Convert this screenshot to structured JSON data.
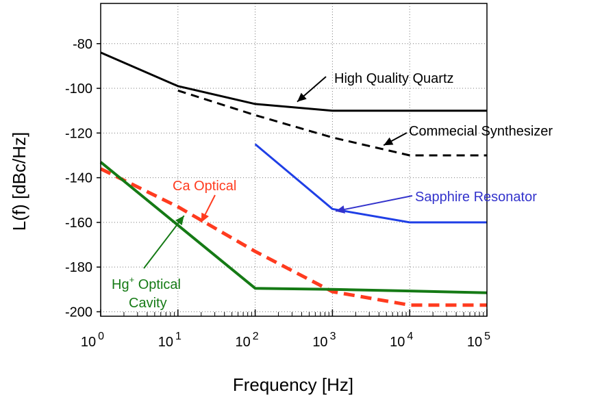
{
  "chart_data": {
    "type": "line",
    "title": "",
    "xlabel": "Frequency [Hz]",
    "ylabel": "L(f) [dBc/Hz]",
    "x_scale": "log",
    "xlim": [
      1,
      100000
    ],
    "ylim": [
      -202,
      -62
    ],
    "grid": true,
    "legend": "none",
    "x_ticks": [
      {
        "value": 1,
        "base": "10",
        "exp": "0"
      },
      {
        "value": 10,
        "base": "10",
        "exp": "1"
      },
      {
        "value": 100,
        "base": "10",
        "exp": "2"
      },
      {
        "value": 1000,
        "base": "10",
        "exp": "3"
      },
      {
        "value": 10000,
        "base": "10",
        "exp": "4"
      },
      {
        "value": 100000,
        "base": "10",
        "exp": "5"
      }
    ],
    "y_ticks": [
      {
        "value": -80,
        "label": "-80"
      },
      {
        "value": -100,
        "label": "-100"
      },
      {
        "value": -120,
        "label": "-120"
      },
      {
        "value": -140,
        "label": "-140"
      },
      {
        "value": -160,
        "label": "-160"
      },
      {
        "value": -180,
        "label": "-180"
      },
      {
        "value": -200,
        "label": "-200"
      }
    ],
    "series": [
      {
        "color": "#000000",
        "dash": "solid",
        "width": 3,
        "points": [
          [
            1,
            -84
          ],
          [
            10,
            -99
          ],
          [
            100,
            -107
          ],
          [
            1000,
            -110
          ],
          [
            100000,
            -110
          ]
        ]
      },
      {
        "color": "#000000",
        "dash": "dashed",
        "width": 3,
        "points": [
          [
            10,
            -101
          ],
          [
            100,
            -112
          ],
          [
            1000,
            -122
          ],
          [
            10000,
            -130
          ],
          [
            100000,
            -130
          ]
        ]
      },
      {
        "color": "#1f3fe6",
        "dash": "solid",
        "width": 3,
        "points": [
          [
            100,
            -125
          ],
          [
            1000,
            -154
          ],
          [
            10000,
            -160
          ],
          [
            100000,
            -160
          ]
        ]
      },
      {
        "color": "#ff3b1f",
        "dash": "dashed",
        "width": 5,
        "points": [
          [
            1,
            -136
          ],
          [
            10,
            -153
          ],
          [
            100,
            -173
          ],
          [
            1000,
            -191
          ],
          [
            10000,
            -197
          ],
          [
            100000,
            -197
          ]
        ]
      },
      {
        "color": "#157a15",
        "dash": "solid",
        "width": 4,
        "points": [
          [
            1,
            -133
          ],
          [
            100,
            -189.5
          ],
          [
            1000,
            -190
          ],
          [
            10000,
            -190.7
          ],
          [
            100000,
            -191.5
          ]
        ]
      }
    ],
    "annotations": [
      {
        "text": "High Quality Quartz",
        "color": "#000000",
        "arrow_to": [
          350,
          -106
        ]
      },
      {
        "text": "Commecial Synthesizer",
        "color": "#000000",
        "arrow_to": [
          4600,
          -125.5
        ]
      },
      {
        "text": "Sapphire Resonator",
        "color": "#3333cc",
        "arrow_to": [
          1100,
          -155
        ]
      },
      {
        "text": "Ca Optical",
        "color": "#ff3b1f",
        "arrow_to": [
          20,
          -160
        ]
      },
      {
        "text_main": "Hg",
        "text_sup": "+",
        "text_rest": " Optical",
        "text_line2": "Cavity",
        "color": "#157a15",
        "arrow_to": [
          12,
          -157
        ]
      }
    ]
  }
}
